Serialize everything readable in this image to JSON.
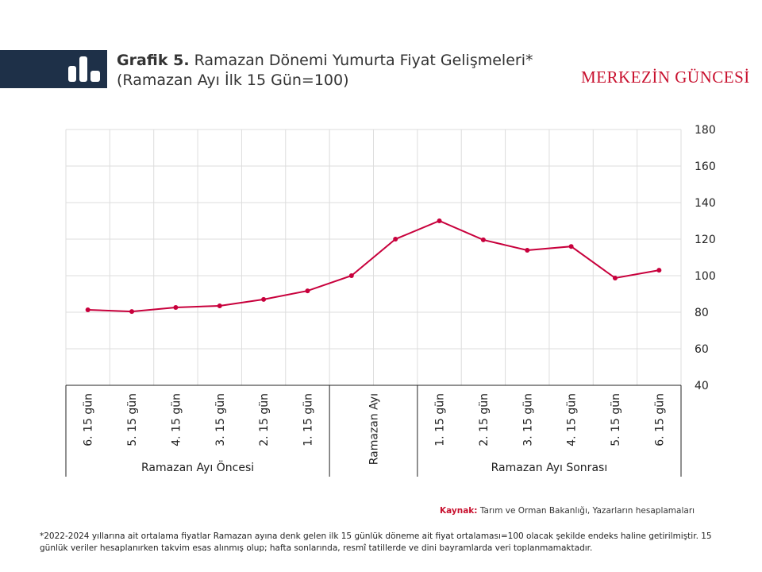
{
  "header": {
    "label": "Grafik 5.",
    "title": "Ramazan Dönemi Yumurta Fiyat Gelişmeleri*",
    "subtitle": "(Ramazan Ayı İlk 15 Gün=100)",
    "brand": "MERKEZİN GÜNCESİ"
  },
  "chart_data": {
    "type": "line",
    "categories": [
      "6. 15 gün",
      "5. 15 gün",
      "4. 15 gün",
      "3. 15 gün",
      "2. 15 gün",
      "1. 15 gün",
      "Ramazan Ayı",
      null,
      "1. 15 gün",
      "2. 15 gün",
      "3. 15 gün",
      "4. 15 gün",
      "5. 15 gün",
      "6. 15 gün"
    ],
    "groups": [
      {
        "label": "Ramazan Ayı Öncesi",
        "span": 6
      },
      {
        "span": 2
      },
      {
        "label": "Ramazan Ayı Sonrası",
        "span": 6
      }
    ],
    "series": [
      {
        "name": "Yumurta",
        "color": "#c8003c",
        "values": [
          81.3,
          80.4,
          82.6,
          83.5,
          87,
          91.7,
          100,
          120,
          130,
          119.6,
          113.9,
          116,
          98.7,
          103
        ]
      }
    ],
    "ylim": [
      40,
      180
    ],
    "yticks": [
      40,
      60,
      80,
      100,
      120,
      140,
      160,
      180
    ],
    "y_axis_side": "right",
    "grid": true
  },
  "footer": {
    "source_label": "Kaynak:",
    "source": "Tarım ve Orman Bakanlığı, Yazarların hesaplamaları",
    "note": "*2022-2024 yıllarına ait ortalama fiyatlar Ramazan ayına denk gelen ilk 15 günlük döneme ait fiyat ortalaması=100 olacak şekilde endeks haline getirilmiştir. 15 günlük veriler hesaplanırken takvim esas alınmış olup; hafta sonlarında, resmî tatillerde ve dini bayramlarda veri toplanmamaktadır."
  }
}
